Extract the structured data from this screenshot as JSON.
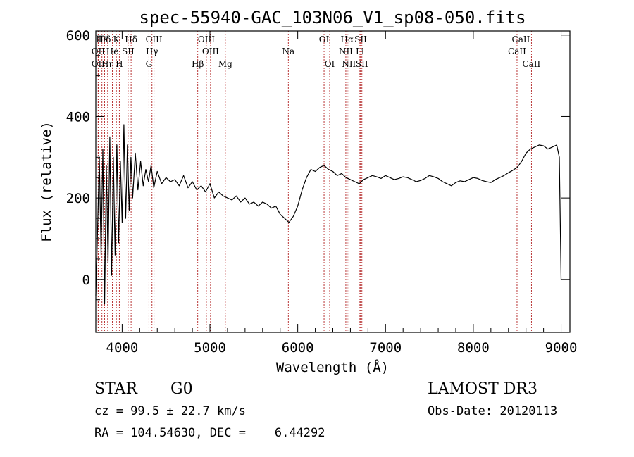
{
  "chart_data": {
    "type": "line",
    "title": "spec-55940-GAC_103N06_V1_sp08-050.fits",
    "xlabel": "Wavelength (Å)",
    "ylabel": "Flux (relative)",
    "xlim": [
      3700,
      9100
    ],
    "ylim": [
      -130,
      610
    ],
    "x_ticks": [
      4000,
      5000,
      6000,
      7000,
      8000,
      9000
    ],
    "y_ticks": [
      0,
      200,
      400,
      600
    ],
    "series": [
      {
        "name": "flux",
        "x": [
          3700,
          3720,
          3740,
          3760,
          3780,
          3800,
          3820,
          3840,
          3860,
          3880,
          3900,
          3920,
          3940,
          3960,
          3980,
          4000,
          4020,
          4040,
          4060,
          4080,
          4100,
          4120,
          4150,
          4180,
          4210,
          4240,
          4270,
          4300,
          4330,
          4360,
          4400,
          4450,
          4500,
          4550,
          4600,
          4650,
          4700,
          4750,
          4800,
          4850,
          4900,
          4950,
          5000,
          5050,
          5100,
          5150,
          5200,
          5250,
          5300,
          5350,
          5400,
          5450,
          5500,
          5550,
          5600,
          5650,
          5700,
          5750,
          5800,
          5850,
          5900,
          5950,
          6000,
          6050,
          6100,
          6150,
          6200,
          6250,
          6300,
          6350,
          6400,
          6450,
          6500,
          6550,
          6600,
          6650,
          6700,
          6750,
          6800,
          6850,
          6900,
          6950,
          7000,
          7050,
          7100,
          7150,
          7200,
          7250,
          7300,
          7350,
          7400,
          7450,
          7500,
          7550,
          7600,
          7650,
          7700,
          7750,
          7800,
          7850,
          7900,
          7950,
          8000,
          8050,
          8100,
          8150,
          8200,
          8250,
          8300,
          8350,
          8400,
          8450,
          8500,
          8550,
          8600,
          8650,
          8700,
          8750,
          8800,
          8850,
          8900,
          8950,
          8980,
          9000
        ],
        "values": [
          -40,
          120,
          300,
          60,
          320,
          -60,
          280,
          40,
          350,
          10,
          300,
          60,
          330,
          90,
          290,
          140,
          380,
          150,
          330,
          170,
          300,
          200,
          310,
          220,
          290,
          230,
          270,
          240,
          280,
          225,
          265,
          235,
          250,
          240,
          245,
          230,
          255,
          225,
          240,
          220,
          230,
          215,
          235,
          200,
          215,
          205,
          200,
          195,
          205,
          190,
          200,
          185,
          190,
          180,
          190,
          185,
          175,
          180,
          160,
          150,
          140,
          155,
          180,
          220,
          250,
          270,
          265,
          275,
          280,
          270,
          265,
          255,
          260,
          250,
          245,
          240,
          235,
          245,
          250,
          255,
          252,
          248,
          255,
          250,
          245,
          248,
          252,
          250,
          245,
          240,
          243,
          248,
          255,
          252,
          248,
          240,
          235,
          230,
          238,
          242,
          240,
          245,
          250,
          248,
          243,
          240,
          238,
          245,
          250,
          255,
          262,
          268,
          275,
          290,
          310,
          320,
          325,
          330,
          328,
          320,
          325,
          330,
          300,
          0
        ]
      }
    ],
    "line_markers": [
      {
        "label": "Hδ",
        "x": 3800,
        "row": 1
      },
      {
        "label": "OII",
        "x": 3727,
        "row": 2
      },
      {
        "label": "OII",
        "x": 3727,
        "row": 3
      },
      {
        "label": "Hε",
        "x": 3770,
        "row": 1
      },
      {
        "label": "K",
        "x": 3934,
        "row": 1
      },
      {
        "label": "He",
        "x": 3889,
        "row": 2
      },
      {
        "label": "Hη",
        "x": 3835,
        "row": 3
      },
      {
        "label": "H",
        "x": 3968,
        "row": 3
      },
      {
        "label": "SII",
        "x": 4068,
        "row": 2
      },
      {
        "label": "Hδ",
        "x": 4102,
        "row": 1
      },
      {
        "label": "OIII",
        "x": 4363,
        "row": 1
      },
      {
        "label": "Hγ",
        "x": 4340,
        "row": 2
      },
      {
        "label": "G",
        "x": 4305,
        "row": 3
      },
      {
        "label": "Hβ",
        "x": 4861,
        "row": 3
      },
      {
        "label": "OIII",
        "x": 4959,
        "row": 1
      },
      {
        "label": "OIII",
        "x": 5007,
        "row": 2
      },
      {
        "label": "Mg",
        "x": 5175,
        "row": 3
      },
      {
        "label": "Na",
        "x": 5893,
        "row": 2
      },
      {
        "label": "OI",
        "x": 6300,
        "row": 1
      },
      {
        "label": "OI",
        "x": 6364,
        "row": 3
      },
      {
        "label": "Hα",
        "x": 6563,
        "row": 1
      },
      {
        "label": "NII",
        "x": 6548,
        "row": 2
      },
      {
        "label": "NII",
        "x": 6583,
        "row": 3
      },
      {
        "label": "SII",
        "x": 6717,
        "row": 1
      },
      {
        "label": "Li",
        "x": 6708,
        "row": 2
      },
      {
        "label": "SII",
        "x": 6731,
        "row": 3
      },
      {
        "label": "CaII",
        "x": 8542,
        "row": 1
      },
      {
        "label": "CaII",
        "x": 8498,
        "row": 2
      },
      {
        "label": "CaII",
        "x": 8662,
        "row": 3
      }
    ]
  },
  "info": {
    "object_class": "STAR",
    "subclass": "G0",
    "survey": "LAMOST DR3",
    "cz": "cz = 99.5 ± 22.7 km/s",
    "obs_date": "Obs-Date: 20120113",
    "coords": "RA = 104.54630, DEC =    6.44292"
  },
  "colors": {
    "spectrum": "#000000",
    "marker": "#b22222",
    "axis": "#000000"
  }
}
